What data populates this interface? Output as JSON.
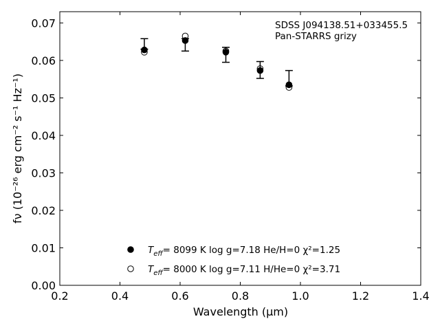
{
  "chart_data": {
    "type": "scatter",
    "title": "",
    "xlabel": "Wavelength (μm)",
    "ylabel": "fν (10⁻²⁶ erg cm⁻² s⁻¹ Hz⁻¹)",
    "xlim": [
      0.2,
      1.4
    ],
    "ylim": [
      0.0,
      0.073
    ],
    "xticks": [
      0.2,
      0.4,
      0.6,
      0.8,
      1.0,
      1.2,
      1.4
    ],
    "xtick_labels": [
      "0.2",
      "0.4",
      "0.6",
      "0.8",
      "1.0",
      "1.2",
      "1.4"
    ],
    "yticks": [
      0.0,
      0.01,
      0.02,
      0.03,
      0.04,
      0.05,
      0.06,
      0.07
    ],
    "ytick_labels": [
      "0.00",
      "0.01",
      "0.02",
      "0.03",
      "0.04",
      "0.05",
      "0.06",
      "0.07"
    ],
    "grid": false,
    "legend_position": "bottom-center",
    "annotations": [
      "SDSS J094138.51+033455.5",
      "Pan-STARRS grizy"
    ],
    "observed": {
      "x": [
        0.481,
        0.617,
        0.752,
        0.866,
        0.962
      ],
      "y": [
        0.0625,
        0.0655,
        0.0625,
        0.0575,
        0.054
      ],
      "yerr_low": [
        0.063,
        0.0625,
        0.0595,
        0.0552,
        0.0532
      ],
      "yerr_high": [
        0.0658,
        0.0658,
        0.0635,
        0.0597,
        0.0573
      ]
    },
    "series": [
      {
        "name": "Teff= 8099 K log g=7.18 He/H=0 χ²=1.25",
        "legend_prefix": "T",
        "legend_sub": "eff",
        "legend_rest": "=  8099 K  log g=7.18  He/H=0  χ²=1.25",
        "marker": "filled-circle",
        "x": [
          0.481,
          0.617,
          0.752,
          0.866,
          0.962
        ],
        "y": [
          0.0628,
          0.0653,
          0.0622,
          0.0573,
          0.0535
        ]
      },
      {
        "name": "Teff= 8000 K log g=7.11 H/He=0 χ²=3.71",
        "legend_prefix": "T",
        "legend_sub": "eff",
        "legend_rest": "=  8000 K  log g=7.11  H/He=0  χ²=3.71",
        "marker": "open-circle",
        "x": [
          0.481,
          0.617,
          0.752,
          0.866,
          0.962
        ],
        "y": [
          0.0622,
          0.0665,
          0.0625,
          0.0578,
          0.0528
        ]
      }
    ]
  }
}
